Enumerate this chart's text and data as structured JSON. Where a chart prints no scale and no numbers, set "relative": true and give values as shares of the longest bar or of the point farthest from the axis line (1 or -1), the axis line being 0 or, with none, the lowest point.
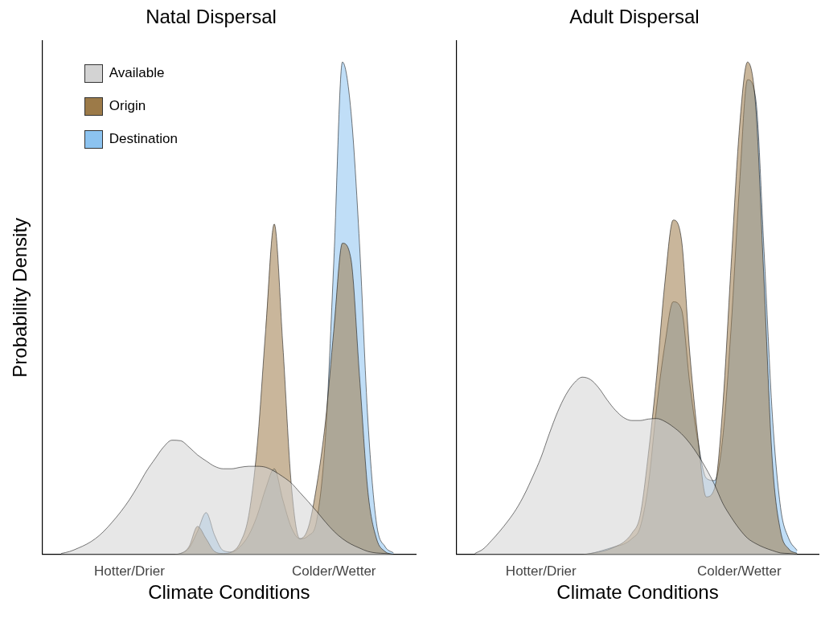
{
  "chart_data": [
    {
      "type": "area",
      "title": "Natal Dispersal",
      "xlabel": "Climate Conditions",
      "ylabel": "Probability Density",
      "relative": true,
      "legend": "top left",
      "categories": [
        null,
        null,
        null,
        null,
        null,
        null,
        null,
        null,
        "Hotter/Drier",
        null,
        null,
        null,
        null,
        null,
        null,
        null,
        null,
        null,
        null,
        null,
        null,
        null,
        null,
        null,
        null,
        null,
        null,
        null,
        null,
        null,
        null,
        null,
        "Colder/Wetter",
        null,
        null,
        null,
        null,
        null,
        null,
        null
      ],
      "series": [
        {
          "name": "Available",
          "color": "#d3d3d3",
          "values": [
            0.002,
            0.006,
            0.013,
            0.021,
            0.032,
            0.047,
            0.066,
            0.087,
            0.111,
            0.139,
            0.169,
            0.194,
            0.218,
            0.232,
            0.231,
            0.218,
            0.202,
            0.19,
            0.179,
            0.174,
            0.174,
            0.177,
            0.179,
            0.179,
            0.177,
            0.169,
            0.158,
            0.145,
            0.126,
            0.107,
            0.087,
            0.066,
            0.047,
            0.032,
            0.021,
            0.013,
            0.006,
            0.003,
            0.002,
            0
          ]
        },
        {
          "name": "Origin",
          "color": "#9c7a48",
          "values": [
            0,
            0,
            0,
            0,
            0,
            0,
            0,
            0,
            0,
            0,
            0,
            0,
            0,
            0,
            0.002,
            0.016,
            0.057,
            0.032,
            0.006,
            0.002,
            0.005,
            0.024,
            0.079,
            0.221,
            0.458,
            0.671,
            0.427,
            0.142,
            0.032,
            0.055,
            0.142,
            0.269,
            0.458,
            0.632,
            0.6,
            0.363,
            0.126,
            0.032,
            0.006,
            0
          ]
        },
        {
          "name": "Destination",
          "color": "#8cc3f0",
          "values": [
            0,
            0,
            0,
            0,
            0,
            0,
            0,
            0,
            0,
            0,
            0,
            0,
            0,
            0,
            0.002,
            0.013,
            0.047,
            0.085,
            0.039,
            0.008,
            0.005,
            0.016,
            0.039,
            0.079,
            0.134,
            0.174,
            0.111,
            0.055,
            0.032,
            0.038,
            0.071,
            0.237,
            0.6,
            1,
            0.9,
            0.632,
            0.269,
            0.063,
            0.016,
            0.003
          ]
        }
      ]
    },
    {
      "type": "area",
      "title": "Adult Dispersal",
      "xlabel": "Climate Conditions",
      "relative": true,
      "categories": [
        null,
        null,
        null,
        null,
        null,
        null,
        null,
        null,
        "Hotter/Drier",
        null,
        null,
        null,
        null,
        null,
        null,
        null,
        null,
        null,
        null,
        null,
        null,
        null,
        null,
        null,
        null,
        null,
        null,
        null,
        null,
        null,
        null,
        null,
        "Colder/Wetter",
        null,
        null,
        null,
        null,
        null,
        null,
        null
      ],
      "series": [
        {
          "color": "#d3d3d3",
          "values": [
            0.002,
            0.011,
            0.028,
            0.047,
            0.068,
            0.092,
            0.122,
            0.158,
            0.197,
            0.245,
            0.289,
            0.324,
            0.348,
            0.36,
            0.355,
            0.338,
            0.314,
            0.293,
            0.278,
            0.272,
            0.272,
            0.275,
            0.276,
            0.27,
            0.259,
            0.245,
            0.226,
            0.202,
            0.174,
            0.142,
            0.104,
            0.076,
            0.052,
            0.033,
            0.022,
            0.014,
            0.008,
            0.003,
            0.002,
            0
          ]
        },
        {
          "color": "#9c7a48",
          "values": [
            0,
            0,
            0,
            0,
            0,
            0,
            0,
            0,
            0,
            0,
            0,
            0,
            0,
            0,
            0.002,
            0.005,
            0.009,
            0.016,
            0.025,
            0.043,
            0.079,
            0.205,
            0.363,
            0.553,
            0.679,
            0.64,
            0.411,
            0.237,
            0.117,
            0.134,
            0.3,
            0.585,
            0.861,
            1,
            0.908,
            0.553,
            0.19,
            0.047,
            0.011,
            0.002
          ]
        },
        {
          "color": "#8cc3f0",
          "values": [
            0,
            0,
            0,
            0,
            0,
            0,
            0,
            0,
            0,
            0,
            0,
            0,
            0,
            0,
            0.002,
            0.006,
            0.011,
            0.016,
            0.021,
            0.032,
            0.055,
            0.142,
            0.3,
            0.427,
            0.513,
            0.498,
            0.348,
            0.229,
            0.155,
            0.15,
            0.237,
            0.458,
            0.743,
            0.964,
            0.924,
            0.616,
            0.284,
            0.095,
            0.032,
            0.008
          ]
        }
      ]
    }
  ]
}
